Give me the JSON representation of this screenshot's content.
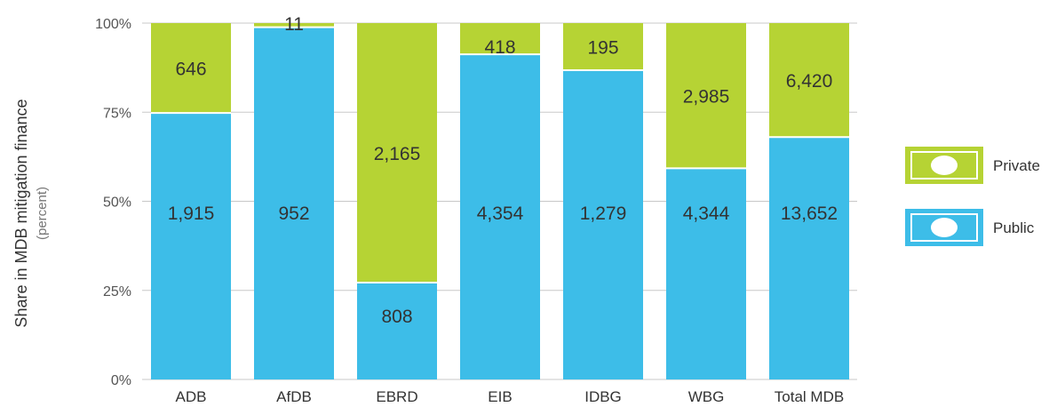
{
  "chart_data": {
    "type": "bar",
    "stacked": true,
    "normalized": true,
    "categories": [
      "ADB",
      "AfDB",
      "EBRD",
      "EIB",
      "IDBG",
      "WBG",
      "Total MDB"
    ],
    "series": [
      {
        "name": "Public",
        "values": [
          1915,
          952,
          808,
          4354,
          1279,
          4344,
          13652
        ],
        "color": "#3dbde8"
      },
      {
        "name": "Private",
        "values": [
          646,
          11,
          2165,
          418,
          195,
          2985,
          6420
        ],
        "color": "#b6d334"
      }
    ],
    "labels": {
      "Public": [
        "1,915",
        "952",
        "808",
        "4,354",
        "1,279",
        "4,344",
        "13,652"
      ],
      "Private": [
        "646",
        "11",
        "2,165",
        "418",
        "195",
        "2,985",
        "6,420"
      ]
    },
    "yticks": [
      "0%",
      "25%",
      "50%",
      "75%",
      "100%"
    ],
    "ylim": [
      0,
      100
    ],
    "ylabel": "Share in MDB mitigation finance",
    "ylabel_sub": "(percent)",
    "legend": {
      "placement": "right",
      "entries": [
        "Private",
        "Public"
      ],
      "icon": "banknote-icon"
    },
    "grid": true
  }
}
